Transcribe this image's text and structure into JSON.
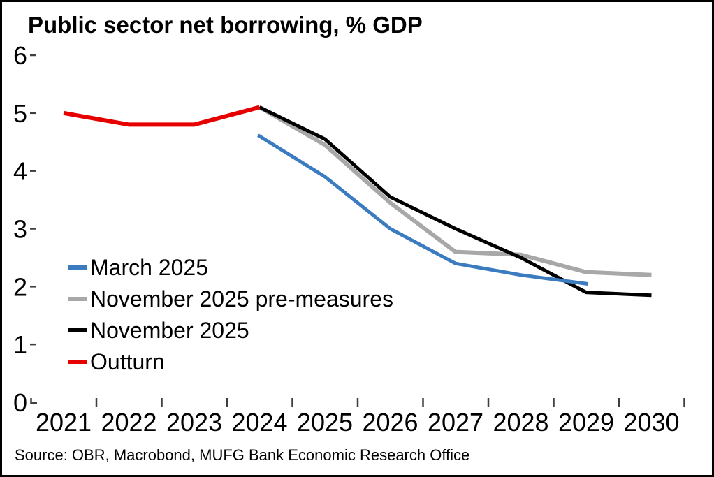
{
  "header": {
    "title": "Public sector net borrowing, % GDP"
  },
  "footer": {
    "source": "Source: OBR, Macrobond, MUFG Bank Economic Research Office"
  },
  "chart_data": {
    "type": "line",
    "title": "Public sector net borrowing, % GDP",
    "xlabel": "",
    "ylabel": "",
    "ylim": [
      0,
      6
    ],
    "y_ticks": [
      0,
      1,
      2,
      3,
      4,
      5,
      6
    ],
    "x_ticks": [
      2021,
      2022,
      2023,
      2024,
      2025,
      2026,
      2027,
      2028,
      2029,
      2030
    ],
    "grid": false,
    "legend_position": "inside-middle-left",
    "series": [
      {
        "name": "March 2025",
        "color": "#3b7cc0",
        "x": [
          2024,
          2025,
          2026,
          2027,
          2028,
          2029
        ],
        "values": [
          4.6,
          3.9,
          3.0,
          2.4,
          2.2,
          2.05
        ]
      },
      {
        "name": "November 2025 pre-measures",
        "color": "#a8a8a8",
        "x": [
          2024,
          2025,
          2026,
          2027,
          2028,
          2029,
          2030
        ],
        "values": [
          5.1,
          4.45,
          3.45,
          2.6,
          2.55,
          2.25,
          2.2
        ]
      },
      {
        "name": "November 2025",
        "color": "#000000",
        "x": [
          2024,
          2025,
          2026,
          2027,
          2028,
          2029,
          2030
        ],
        "values": [
          5.1,
          4.55,
          3.55,
          3.0,
          2.5,
          1.9,
          1.85
        ]
      },
      {
        "name": "Outturn",
        "color": "#e60000",
        "x": [
          2021,
          2022,
          2023,
          2024
        ],
        "values": [
          5.0,
          4.8,
          4.8,
          5.1
        ]
      }
    ]
  }
}
